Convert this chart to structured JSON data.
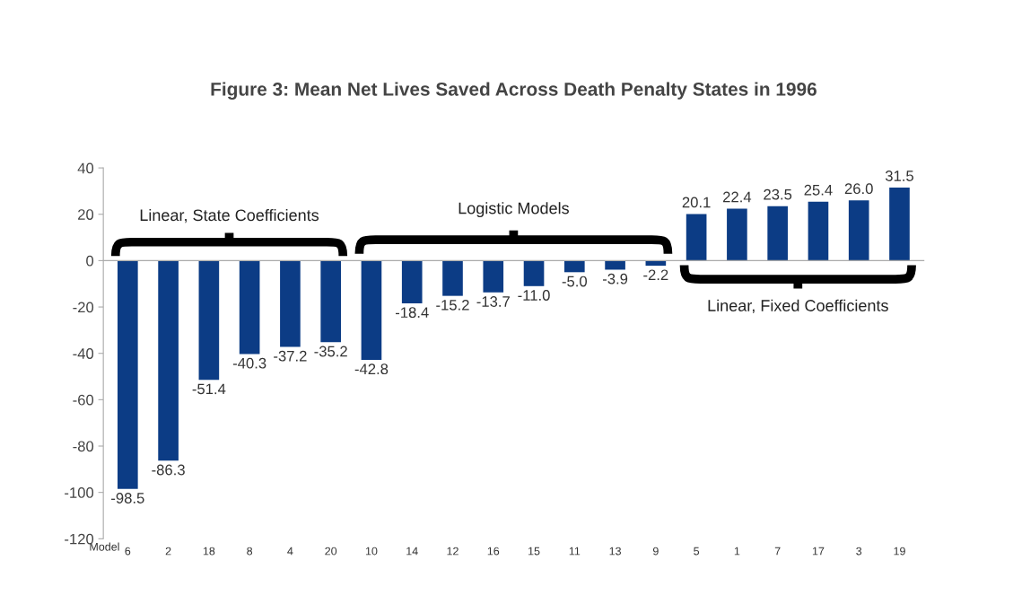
{
  "chart_data": {
    "type": "bar",
    "title": "Figure 3: Mean Net Lives Saved Across Death Penalty States in 1996",
    "xlabel": "Model",
    "categories": [
      "6",
      "2",
      "18",
      "8",
      "4",
      "20",
      "10",
      "14",
      "12",
      "16",
      "15",
      "11",
      "13",
      "9",
      "5",
      "1",
      "7",
      "17",
      "3",
      "19"
    ],
    "values": [
      -98.5,
      -86.3,
      -51.4,
      -40.3,
      -37.2,
      -35.2,
      -42.8,
      -18.4,
      -15.2,
      -13.7,
      -11.0,
      -5.0,
      -3.9,
      -2.2,
      20.1,
      22.4,
      23.5,
      25.4,
      26.0,
      31.5
    ],
    "value_labels": [
      "-98.5",
      "-86.3",
      "-51.4",
      "-40.3",
      "-37.2",
      "-35.2",
      "-42.8",
      "-18.4",
      "-15.2",
      "-13.7",
      "-11.0",
      "-5.0",
      "-3.9",
      "-2.2",
      "20.1",
      "22.4",
      "23.5",
      "25.4",
      "26.0",
      "31.5"
    ],
    "color": "#0c3c85",
    "ylim": [
      -120,
      40
    ],
    "yticks": [
      -120,
      -100,
      -80,
      -60,
      -40,
      -20,
      0,
      20,
      40
    ],
    "annotations": [
      "Linear, State Coefficients",
      "Logistic Models",
      "Linear, Fixed Coefficients"
    ],
    "legend": false
  }
}
